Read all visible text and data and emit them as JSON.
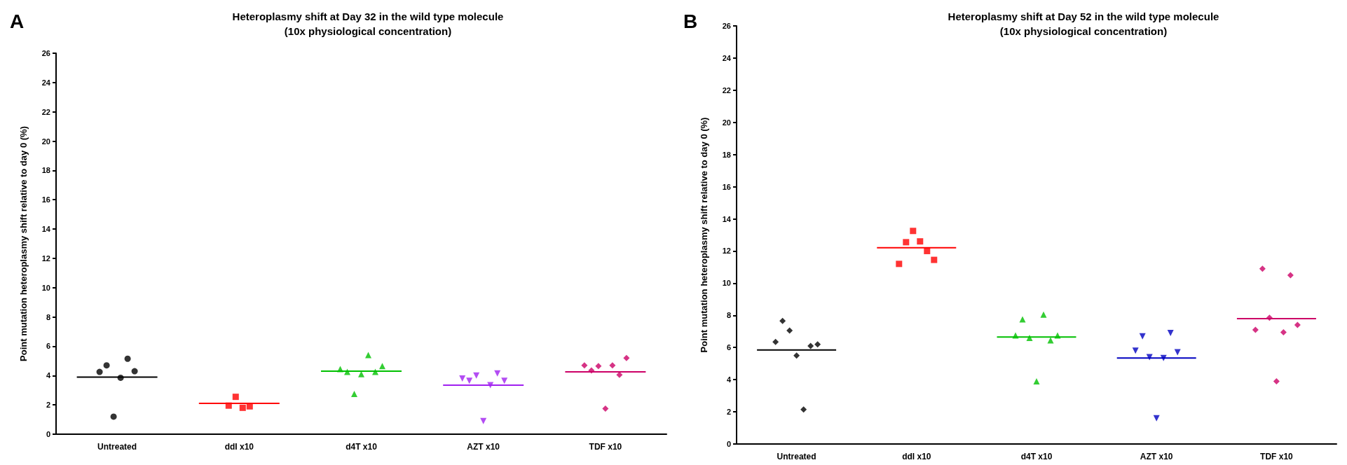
{
  "chart_data": [
    {
      "type": "scatter",
      "title": "Heteroplasmy shift at Day 32 in the wild type molecule\n(10x physiological concentration)",
      "ylabel": "Point mutation heteroplasmy shift relative to day 0 (%)",
      "annotations": [
        "A"
      ],
      "categories": [
        "Untreated",
        "ddI x10",
        "d4T x10",
        "AZT x10",
        "TDF x10"
      ],
      "ylim": [
        0,
        26
      ],
      "yticks": [
        0,
        2,
        4,
        6,
        8,
        10,
        12,
        14,
        16,
        18,
        20,
        22,
        24,
        26
      ],
      "grid": false,
      "series": [
        {
          "marker": "circle",
          "color": "#000000",
          "x": [
            "Untreated",
            "Untreated",
            "Untreated",
            "Untreated",
            "Untreated",
            "Untreated"
          ],
          "values": [
            4.25,
            4.7,
            1.2,
            3.85,
            5.15,
            4.3
          ]
        },
        {
          "marker": "square",
          "color": "#ff0000",
          "x": [
            "ddI x10",
            "ddI x10",
            "ddI x10",
            "ddI x10"
          ],
          "values": [
            1.95,
            2.55,
            1.8,
            1.9
          ]
        },
        {
          "marker": "triangle",
          "color": "#00c000",
          "x": [
            "d4T x10",
            "d4T x10",
            "d4T x10",
            "d4T x10",
            "d4T x10",
            "d4T x10",
            "d4T x10"
          ],
          "values": [
            4.45,
            4.25,
            2.75,
            4.1,
            5.4,
            4.25,
            4.65
          ]
        },
        {
          "marker": "triangle-down",
          "color": "#a020f0",
          "x": [
            "AZT x10",
            "AZT x10",
            "AZT x10",
            "AZT x10",
            "AZT x10",
            "AZT x10",
            "AZT x10"
          ],
          "values": [
            3.8,
            3.65,
            4.0,
            0.9,
            3.35,
            4.15,
            3.65
          ]
        },
        {
          "marker": "diamond",
          "color": "#cc0066",
          "x": [
            "TDF x10",
            "TDF x10",
            "TDF x10",
            "TDF x10",
            "TDF x10",
            "TDF x10",
            "TDF x10"
          ],
          "values": [
            4.7,
            4.35,
            4.65,
            1.75,
            4.7,
            4.05,
            5.2
          ]
        },
        {
          "type": "box",
          "colors": [
            "#000000",
            "#ff0000",
            "#00c000",
            "#a020f0",
            "#cc0066"
          ],
          "boxes": [
            {
              "low": 3.9,
              "q1": 3.9,
              "median": 3.9,
              "q3": 3.9,
              "high": 3.9
            },
            {
              "low": 2.1,
              "q1": 2.1,
              "median": 2.1,
              "q3": 2.1,
              "high": 2.1
            },
            {
              "low": 4.3,
              "q1": 4.3,
              "median": 4.3,
              "q3": 4.3,
              "high": 4.3
            },
            {
              "low": 3.35,
              "q1": 3.35,
              "median": 3.35,
              "q3": 3.35,
              "high": 3.35
            },
            {
              "low": 4.25,
              "q1": 4.25,
              "median": 4.25,
              "q3": 4.25,
              "high": 4.25
            }
          ]
        }
      ]
    },
    {
      "type": "scatter",
      "title": "Heteroplasmy shift at Day 52 in the wild type molecule\n(10x physiological concentration)",
      "ylabel": "Point mutation heteroplasmy shift relative to day 0 (%)",
      "annotations": [
        "B"
      ],
      "categories": [
        "Untreated",
        "ddI x10",
        "d4T x10",
        "AZT x10",
        "TDF x10"
      ],
      "ylim": [
        0,
        26
      ],
      "yticks": [
        0,
        2,
        4,
        6,
        8,
        10,
        12,
        14,
        16,
        18,
        20,
        22,
        24,
        26
      ],
      "grid": false,
      "series": [
        {
          "marker": "diamond",
          "color": "#000000",
          "x": [
            "Untreated",
            "Untreated",
            "Untreated",
            "Untreated",
            "Untreated",
            "Untreated",
            "Untreated"
          ],
          "values": [
            6.35,
            7.65,
            7.05,
            5.5,
            2.15,
            6.1,
            6.2
          ]
        },
        {
          "marker": "square",
          "color": "#ff0000",
          "x": [
            "ddI x10",
            "ddI x10",
            "ddI x10",
            "ddI x10",
            "ddI x10",
            "ddI x10"
          ],
          "values": [
            11.2,
            12.55,
            13.25,
            12.6,
            12.0,
            11.45
          ]
        },
        {
          "marker": "triangle",
          "color": "#00c000",
          "x": [
            "d4T x10",
            "d4T x10",
            "d4T x10",
            "d4T x10",
            "d4T x10",
            "d4T x10",
            "d4T x10"
          ],
          "values": [
            6.75,
            7.75,
            6.6,
            3.9,
            8.05,
            6.45,
            6.75
          ]
        },
        {
          "marker": "triangle-down",
          "color": "#0000c0",
          "x": [
            "AZT x10",
            "AZT x10",
            "AZT x10",
            "AZT x10",
            "AZT x10",
            "AZT x10",
            "AZT x10"
          ],
          "values": [
            5.8,
            6.7,
            5.4,
            1.6,
            5.35,
            6.9,
            5.7
          ]
        },
        {
          "marker": "diamond",
          "color": "#cc0066",
          "x": [
            "TDF x10",
            "TDF x10",
            "TDF x10",
            "TDF x10",
            "TDF x10",
            "TDF x10",
            "TDF x10"
          ],
          "values": [
            7.1,
            10.9,
            7.85,
            3.9,
            6.95,
            10.5,
            7.4
          ]
        },
        {
          "type": "box",
          "colors": [
            "#000000",
            "#ff0000",
            "#00c000",
            "#0000c0",
            "#cc0066"
          ],
          "boxes": [
            {
              "low": 5.85,
              "q1": 5.85,
              "median": 5.85,
              "q3": 5.85,
              "high": 5.85
            },
            {
              "low": 12.2,
              "q1": 12.2,
              "median": 12.2,
              "q3": 12.2,
              "high": 12.2
            },
            {
              "low": 6.65,
              "q1": 6.65,
              "median": 6.65,
              "q3": 6.65,
              "high": 6.65
            },
            {
              "low": 5.35,
              "q1": 5.35,
              "median": 5.35,
              "q3": 5.35,
              "high": 5.35
            },
            {
              "low": 7.8,
              "q1": 7.8,
              "median": 7.8,
              "q3": 7.8,
              "high": 7.8
            }
          ]
        }
      ]
    }
  ]
}
